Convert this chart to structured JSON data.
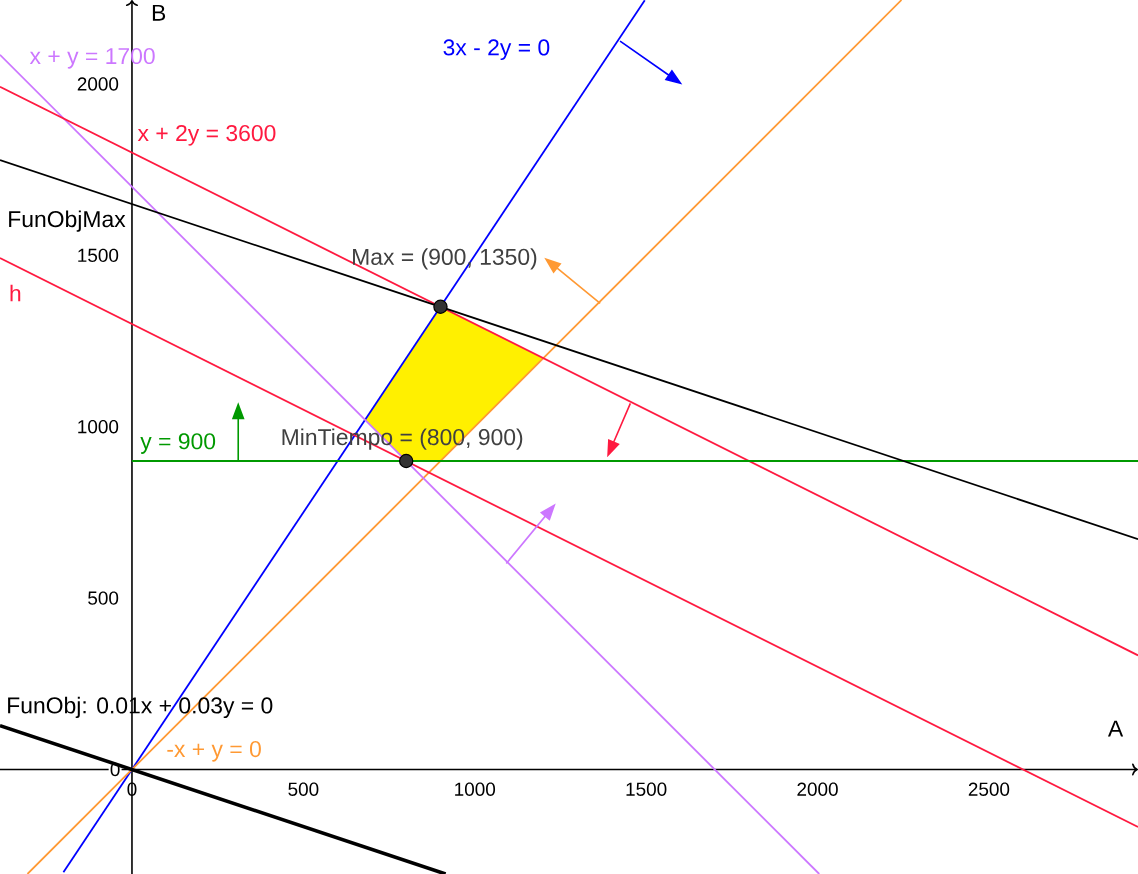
{
  "chart_data": {
    "type": "line",
    "xlabel": "A",
    "ylabel": "B",
    "xlim": [
      -385,
      2935
    ],
    "ylim": [
      -305,
      2245
    ],
    "xticks": [
      0,
      500,
      1000,
      1500,
      2000,
      2500
    ],
    "yticks": [
      0,
      500,
      1000,
      1500,
      2000
    ],
    "grid": false,
    "legend": false,
    "marker": "none",
    "line_style": "solid",
    "series": [
      {
        "type": "area",
        "color": "#fff000",
        "x": [
          900,
          1200,
          900,
          800,
          680
        ],
        "values": [
          1350,
          1200,
          900,
          900,
          1020
        ]
      },
      {
        "name": "3x - 2y = 0",
        "color": "#0000ff",
        "x": [
          -200,
          1496
        ],
        "values": [
          -300,
          2244
        ]
      },
      {
        "name": "-x + y = 0",
        "color": "#ff9933",
        "x": [
          -305,
          2245
        ],
        "values": [
          -305,
          2245
        ]
      },
      {
        "name": "x + y = 1700",
        "color": "#cc77ff",
        "x": [
          -385,
          2005
        ],
        "values": [
          2085,
          -305
        ]
      },
      {
        "name": "x + 2y = 3600",
        "color": "#ff1a40",
        "x": [
          -385,
          2935
        ],
        "values": [
          1992,
          333
        ]
      },
      {
        "name": "h",
        "color": "#ff1a40",
        "x": [
          -385,
          2935
        ],
        "values": [
          1492,
          -168
        ]
      },
      {
        "name": "y = 900",
        "color": "#009900",
        "x": [
          0,
          2935
        ],
        "values": [
          900,
          900
        ]
      },
      {
        "name": "FunObjMax",
        "color": "#000000",
        "x": [
          -385,
          2935
        ],
        "values": [
          1778,
          672
        ]
      },
      {
        "name": "FunObj: 0.01x + 0.03y = 0",
        "color": "#000000",
        "x": [
          -385,
          915
        ],
        "values": [
          128,
          -305
        ]
      },
      {
        "type": "scatter",
        "color": "#333333",
        "marker": "circle",
        "x": [
          900,
          800
        ],
        "values": [
          1350,
          900
        ]
      }
    ],
    "annotations": [
      {
        "text": "Max = (900, 1350)",
        "x": 900,
        "y": 1350
      },
      {
        "text": "MinTiempo = (800, 900)",
        "x": 800,
        "y": 900
      }
    ]
  }
}
